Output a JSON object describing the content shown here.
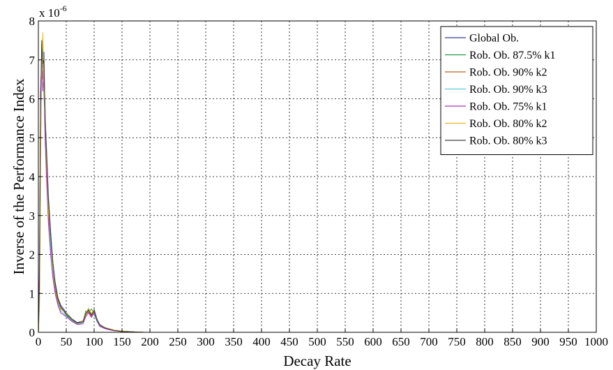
{
  "chart_data": {
    "type": "line",
    "title": "",
    "xlabel": "Decay Rate",
    "ylabel": "Inverse of the Performance Index",
    "y_exponent_label": "x 10",
    "y_exponent_power": "-6",
    "xlim": [
      0,
      1000
    ],
    "ylim": [
      0,
      8
    ],
    "x_ticks": [
      0,
      50,
      100,
      150,
      200,
      250,
      300,
      350,
      400,
      450,
      500,
      550,
      600,
      650,
      700,
      750,
      800,
      850,
      900,
      950,
      1000
    ],
    "x_tick_labels": [
      "0",
      "50",
      "100",
      "150",
      "200",
      "250",
      "300",
      "350",
      "400",
      "450",
      "500",
      "550",
      "600",
      "650",
      "700",
      "750",
      "800",
      "850",
      "900",
      "950",
      "1000"
    ],
    "y_ticks": [
      0,
      1,
      2,
      3,
      4,
      5,
      6,
      7,
      8
    ],
    "y_tick_labels": [
      "0",
      "1",
      "2",
      "3",
      "4",
      "5",
      "6",
      "7",
      "8"
    ],
    "grid": true,
    "legend_position": "top-right",
    "series": [
      {
        "name": "Global Ob.",
        "color": "#3a3aa0",
        "x": [
          0,
          2,
          4,
          6,
          8,
          10,
          12,
          15,
          18,
          22,
          26,
          30,
          35,
          40,
          50,
          60,
          70,
          80,
          85,
          90,
          95,
          100,
          105,
          110,
          120,
          135,
          150,
          170,
          190,
          210
        ],
        "y": [
          0,
          1.2,
          5.5,
          7.5,
          6.8,
          7.2,
          5.6,
          4.6,
          3.5,
          2.6,
          1.8,
          1.3,
          0.9,
          0.7,
          0.5,
          0.35,
          0.25,
          0.3,
          0.5,
          0.6,
          0.45,
          0.6,
          0.35,
          0.2,
          0.12,
          0.06,
          0.03,
          0.01,
          0.0,
          0.0
        ]
      },
      {
        "name": "Rob. Ob. 87.5% k1",
        "color": "#2e9a4e",
        "x": [
          0,
          2,
          4,
          6,
          8,
          10,
          12,
          15,
          18,
          22,
          26,
          30,
          35,
          40,
          50,
          60,
          70,
          80,
          85,
          90,
          95,
          100,
          105,
          110,
          120,
          135,
          150,
          170,
          190,
          210
        ],
        "y": [
          0,
          0.8,
          4.8,
          7.0,
          7.6,
          6.3,
          5.9,
          4.2,
          3.2,
          2.4,
          1.6,
          1.2,
          0.85,
          0.65,
          0.45,
          0.3,
          0.22,
          0.28,
          0.55,
          0.5,
          0.6,
          0.5,
          0.3,
          0.18,
          0.1,
          0.05,
          0.03,
          0.01,
          0.0,
          0.0
        ]
      },
      {
        "name": "Rob. Ob. 90% k2",
        "color": "#b5651d",
        "x": [
          0,
          2,
          4,
          6,
          8,
          10,
          12,
          15,
          18,
          22,
          26,
          30,
          35,
          40,
          50,
          60,
          70,
          80,
          85,
          90,
          95,
          100,
          105,
          110,
          120,
          135,
          150,
          170,
          190,
          210
        ],
        "y": [
          0,
          1.5,
          6.0,
          7.3,
          6.5,
          6.9,
          5.2,
          4.4,
          3.0,
          2.3,
          1.7,
          1.1,
          0.8,
          0.6,
          0.5,
          0.32,
          0.24,
          0.26,
          0.45,
          0.55,
          0.4,
          0.55,
          0.32,
          0.2,
          0.11,
          0.05,
          0.02,
          0.01,
          0.0,
          0.0
        ]
      },
      {
        "name": "Rob. Ob. 90% k3",
        "color": "#5cc8d8",
        "x": [
          0,
          2,
          4,
          6,
          8,
          10,
          12,
          15,
          18,
          22,
          26,
          30,
          35,
          40,
          50,
          60,
          70,
          80,
          85,
          90,
          95,
          100,
          105,
          110,
          120,
          135,
          150,
          170,
          190,
          210
        ],
        "y": [
          0,
          1.0,
          5.0,
          6.8,
          7.4,
          6.0,
          5.7,
          4.0,
          3.3,
          2.2,
          1.5,
          1.0,
          0.75,
          0.55,
          0.42,
          0.3,
          0.2,
          0.25,
          0.5,
          0.58,
          0.5,
          0.45,
          0.28,
          0.16,
          0.1,
          0.05,
          0.02,
          0.0,
          0.0,
          0.0
        ]
      },
      {
        "name": "Rob. Ob. 75% k1",
        "color": "#b030b0",
        "x": [
          0,
          2,
          4,
          6,
          8,
          10,
          12,
          15,
          18,
          22,
          26,
          30,
          35,
          40,
          50,
          60,
          70,
          80,
          85,
          90,
          95,
          100,
          105,
          110,
          120,
          135,
          150,
          170,
          190,
          210
        ],
        "y": [
          0,
          1.8,
          6.2,
          7.1,
          6.2,
          6.6,
          5.0,
          3.8,
          2.8,
          2.0,
          1.4,
          1.0,
          0.7,
          0.5,
          0.4,
          0.28,
          0.2,
          0.22,
          0.4,
          0.5,
          0.38,
          0.5,
          0.3,
          0.15,
          0.09,
          0.04,
          0.02,
          0.0,
          0.0,
          0.0
        ]
      },
      {
        "name": "Rob. Ob. 80% k2",
        "color": "#e0c020",
        "x": [
          0,
          2,
          4,
          6,
          8,
          10,
          12,
          15,
          18,
          22,
          26,
          30,
          35,
          40,
          50,
          60,
          70,
          80,
          85,
          90,
          95,
          100,
          105,
          110,
          120,
          135,
          150,
          170,
          190,
          210
        ],
        "y": [
          0,
          0.6,
          4.5,
          6.6,
          7.7,
          6.4,
          5.5,
          4.3,
          3.1,
          2.5,
          1.7,
          1.2,
          0.9,
          0.62,
          0.48,
          0.34,
          0.23,
          0.3,
          0.5,
          0.62,
          0.48,
          0.58,
          0.33,
          0.19,
          0.12,
          0.06,
          0.03,
          0.01,
          0.0,
          0.0
        ]
      },
      {
        "name": "Rob. Ob. 80% k3",
        "color": "#404040",
        "x": [
          0,
          2,
          4,
          6,
          8,
          10,
          12,
          15,
          18,
          22,
          26,
          30,
          35,
          40,
          50,
          60,
          70,
          80,
          85,
          90,
          95,
          100,
          105,
          110,
          120,
          135,
          150,
          170,
          190,
          210
        ],
        "y": [
          0,
          1.3,
          5.8,
          7.4,
          6.9,
          7.0,
          5.4,
          4.5,
          3.4,
          2.5,
          1.8,
          1.25,
          0.88,
          0.66,
          0.47,
          0.33,
          0.24,
          0.27,
          0.48,
          0.57,
          0.44,
          0.56,
          0.31,
          0.19,
          0.11,
          0.05,
          0.02,
          0.01,
          0.0,
          0.0
        ]
      }
    ]
  }
}
